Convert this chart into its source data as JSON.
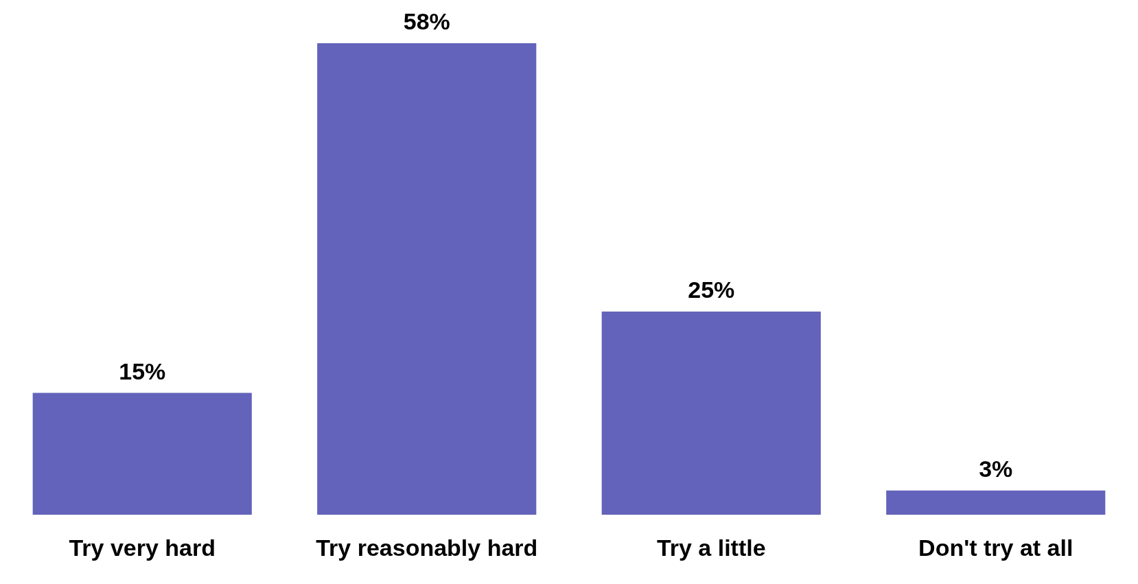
{
  "chart_data": {
    "type": "bar",
    "categories": [
      "Try very hard",
      "Try reasonably hard",
      "Try a little",
      "Don't try at all"
    ],
    "values": [
      15,
      58,
      25,
      3
    ],
    "value_labels": [
      "15%",
      "58%",
      "25%",
      "3%"
    ],
    "color": "#6363bb",
    "tick_labels": "x"
  }
}
